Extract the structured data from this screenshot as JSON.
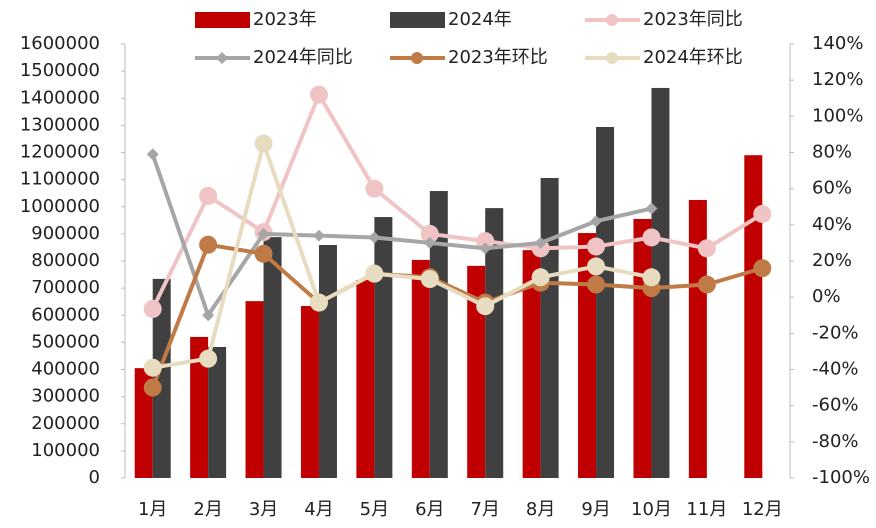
{
  "chart_data": {
    "type": "bar",
    "categories": [
      "1月",
      "2月",
      "3月",
      "4月",
      "5月",
      "6月",
      "7月",
      "8月",
      "9月",
      "10月",
      "11月",
      "12月"
    ],
    "ylim": [
      0,
      1600000
    ],
    "yticks": [
      0,
      100000,
      200000,
      300000,
      400000,
      500000,
      600000,
      700000,
      800000,
      900000,
      1000000,
      1100000,
      1200000,
      1300000,
      1400000,
      1500000,
      1600000
    ],
    "y2lim": [
      -100,
      140
    ],
    "y2ticks": [
      {
        "value": -100,
        "label": "-100%"
      },
      {
        "value": -80,
        "label": "-80%"
      },
      {
        "value": -60,
        "label": "-60%"
      },
      {
        "value": -40,
        "label": "-40%"
      },
      {
        "value": -20,
        "label": "-20%"
      },
      {
        "value": 0,
        "label": "0%"
      },
      {
        "value": 20,
        "label": "20%"
      },
      {
        "value": 40,
        "label": "40%"
      },
      {
        "value": 60,
        "label": "60%"
      },
      {
        "value": 80,
        "label": "80%"
      },
      {
        "value": 100,
        "label": "100%"
      },
      {
        "value": 120,
        "label": "120%"
      },
      {
        "value": 140,
        "label": "140%"
      }
    ],
    "legend": "top",
    "series": [
      {
        "name": "2023年",
        "type": "bar",
        "color": "#c00000",
        "values": [
          405000,
          520000,
          652000,
          634000,
          730000,
          804000,
          782000,
          840000,
          903000,
          955000,
          1025000,
          1190000
        ]
      },
      {
        "name": "2024年",
        "type": "bar",
        "color": "#404040",
        "values": [
          734000,
          483000,
          888000,
          859000,
          962000,
          1058000,
          995000,
          1106000,
          1294000,
          1438000,
          null,
          null
        ]
      },
      {
        "name": "2023年同比",
        "type": "line",
        "axis": "y2",
        "marker": "circle",
        "color": "#f0c4c4",
        "values": [
          -6.5,
          56,
          36,
          112,
          60,
          35,
          31,
          27,
          28,
          33,
          27,
          46
        ]
      },
      {
        "name": "2024年同比",
        "type": "line",
        "axis": "y2",
        "marker": "diamond",
        "color": "#a6a6a6",
        "values": [
          79,
          -10,
          35,
          34,
          33,
          30,
          27,
          30,
          42,
          49,
          null,
          null
        ]
      },
      {
        "name": "2023年环比",
        "type": "line",
        "axis": "y2",
        "marker": "circle",
        "color": "#c07a45",
        "values": [
          -50,
          29,
          24,
          -3,
          13,
          11,
          -3,
          8,
          7,
          5,
          7,
          16
        ]
      },
      {
        "name": "2024年环比",
        "type": "line",
        "axis": "y2",
        "marker": "circle",
        "color": "#e8dcc0",
        "values": [
          -39,
          -34,
          85,
          -3,
          13,
          10,
          -5,
          11,
          17,
          11,
          null,
          null
        ]
      }
    ]
  }
}
